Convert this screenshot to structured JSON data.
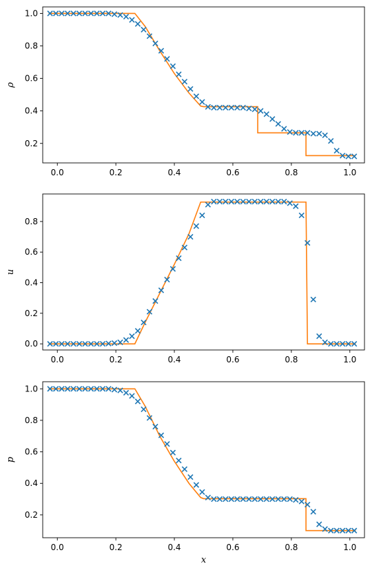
{
  "figure": {
    "background": "#ffffff",
    "series_styles": {
      "numerical": {
        "color": "#1f77b4",
        "marker": "x"
      },
      "exact": {
        "color": "#ff7f0e",
        "line": "solid"
      }
    }
  },
  "chart_data": [
    {
      "type": "line",
      "xlabel": "",
      "ylabel": "ρ",
      "xlim": [
        -0.05,
        1.05
      ],
      "ylim": [
        0.08,
        1.04
      ],
      "xticks": [
        0.0,
        0.2,
        0.4,
        0.6,
        0.8,
        1.0
      ],
      "xtick_labels": [
        "0.0",
        "0.2",
        "0.4",
        "0.6",
        "0.8",
        "1.0"
      ],
      "yticks": [
        0.2,
        0.4,
        0.6,
        0.8,
        1.0
      ],
      "ytick_labels": [
        "0.2",
        "0.4",
        "0.6",
        "0.8",
        "1.0"
      ],
      "grid": false,
      "series": [
        {
          "style": "numerical",
          "x": [
            -0.025,
            -0.005,
            0.015,
            0.035,
            0.055,
            0.075,
            0.095,
            0.115,
            0.135,
            0.155,
            0.175,
            0.195,
            0.215,
            0.235,
            0.255,
            0.275,
            0.295,
            0.315,
            0.335,
            0.355,
            0.375,
            0.395,
            0.415,
            0.435,
            0.455,
            0.475,
            0.495,
            0.515,
            0.535,
            0.555,
            0.575,
            0.595,
            0.615,
            0.635,
            0.655,
            0.675,
            0.695,
            0.715,
            0.735,
            0.755,
            0.775,
            0.795,
            0.815,
            0.835,
            0.855,
            0.875,
            0.895,
            0.915,
            0.935,
            0.955,
            0.975,
            0.995,
            1.015
          ],
          "y": [
            1.0,
            1.0,
            1.0,
            1.0,
            1.0,
            1.0,
            1.0,
            1.0,
            1.0,
            1.0,
            1.0,
            0.995,
            0.99,
            0.98,
            0.96,
            0.935,
            0.9,
            0.86,
            0.815,
            0.77,
            0.72,
            0.675,
            0.625,
            0.58,
            0.535,
            0.49,
            0.455,
            0.425,
            0.42,
            0.42,
            0.42,
            0.42,
            0.42,
            0.42,
            0.415,
            0.41,
            0.4,
            0.38,
            0.35,
            0.32,
            0.29,
            0.27,
            0.265,
            0.265,
            0.265,
            0.26,
            0.26,
            0.25,
            0.215,
            0.155,
            0.125,
            0.12,
            0.12
          ]
        },
        {
          "style": "exact",
          "x": [
            -0.03,
            0.265,
            0.3,
            0.35,
            0.4,
            0.45,
            0.49,
            0.5,
            0.685,
            0.685,
            0.85,
            0.85,
            1.02
          ],
          "y": [
            1.0,
            1.0,
            0.92,
            0.77,
            0.63,
            0.51,
            0.43,
            0.426,
            0.426,
            0.265,
            0.265,
            0.125,
            0.125
          ]
        }
      ]
    },
    {
      "type": "line",
      "xlabel": "",
      "ylabel": "u",
      "xlim": [
        -0.05,
        1.05
      ],
      "ylim": [
        -0.04,
        0.98
      ],
      "xticks": [
        0.0,
        0.2,
        0.4,
        0.6,
        0.8,
        1.0
      ],
      "xtick_labels": [
        "0.0",
        "0.2",
        "0.4",
        "0.6",
        "0.8",
        "1.0"
      ],
      "yticks": [
        0.0,
        0.2,
        0.4,
        0.6,
        0.8
      ],
      "ytick_labels": [
        "0.0",
        "0.2",
        "0.4",
        "0.6",
        "0.8"
      ],
      "grid": false,
      "series": [
        {
          "style": "numerical",
          "x": [
            -0.025,
            -0.005,
            0.015,
            0.035,
            0.055,
            0.075,
            0.095,
            0.115,
            0.135,
            0.155,
            0.175,
            0.195,
            0.215,
            0.235,
            0.255,
            0.275,
            0.295,
            0.315,
            0.335,
            0.355,
            0.375,
            0.395,
            0.415,
            0.435,
            0.455,
            0.475,
            0.495,
            0.515,
            0.535,
            0.555,
            0.575,
            0.595,
            0.615,
            0.635,
            0.655,
            0.675,
            0.695,
            0.715,
            0.735,
            0.755,
            0.775,
            0.795,
            0.815,
            0.835,
            0.855,
            0.875,
            0.895,
            0.915,
            0.935,
            0.955,
            0.975,
            0.995,
            1.015
          ],
          "y": [
            0.0,
            0.0,
            0.0,
            0.0,
            0.0,
            0.0,
            0.0,
            0.0,
            0.0,
            0.0,
            0.002,
            0.005,
            0.01,
            0.025,
            0.05,
            0.085,
            0.14,
            0.21,
            0.28,
            0.35,
            0.42,
            0.49,
            0.56,
            0.63,
            0.7,
            0.77,
            0.84,
            0.91,
            0.93,
            0.93,
            0.93,
            0.93,
            0.93,
            0.93,
            0.93,
            0.93,
            0.93,
            0.93,
            0.93,
            0.93,
            0.93,
            0.92,
            0.9,
            0.84,
            0.66,
            0.29,
            0.05,
            0.01,
            0.0,
            0.0,
            0.0,
            0.0,
            0.0
          ]
        },
        {
          "style": "exact",
          "x": [
            -0.03,
            0.265,
            0.3,
            0.35,
            0.4,
            0.45,
            0.49,
            0.85,
            0.855,
            1.02
          ],
          "y": [
            0.0,
            0.0,
            0.14,
            0.33,
            0.52,
            0.72,
            0.927,
            0.927,
            0.0,
            0.0
          ]
        }
      ]
    },
    {
      "type": "line",
      "xlabel": "x",
      "ylabel": "p",
      "xlim": [
        -0.05,
        1.05
      ],
      "ylim": [
        0.055,
        1.045
      ],
      "xticks": [
        0.0,
        0.2,
        0.4,
        0.6,
        0.8,
        1.0
      ],
      "xtick_labels": [
        "0.0",
        "0.2",
        "0.4",
        "0.6",
        "0.8",
        "1.0"
      ],
      "yticks": [
        0.2,
        0.4,
        0.6,
        0.8,
        1.0
      ],
      "ytick_labels": [
        "0.2",
        "0.4",
        "0.6",
        "0.8",
        "1.0"
      ],
      "grid": false,
      "series": [
        {
          "style": "numerical",
          "x": [
            -0.025,
            -0.005,
            0.015,
            0.035,
            0.055,
            0.075,
            0.095,
            0.115,
            0.135,
            0.155,
            0.175,
            0.195,
            0.215,
            0.235,
            0.255,
            0.275,
            0.295,
            0.315,
            0.335,
            0.355,
            0.375,
            0.395,
            0.415,
            0.435,
            0.455,
            0.475,
            0.495,
            0.515,
            0.535,
            0.555,
            0.575,
            0.595,
            0.615,
            0.635,
            0.655,
            0.675,
            0.695,
            0.715,
            0.735,
            0.755,
            0.775,
            0.795,
            0.815,
            0.835,
            0.855,
            0.875,
            0.895,
            0.915,
            0.935,
            0.955,
            0.975,
            0.995,
            1.015
          ],
          "y": [
            1.0,
            1.0,
            1.0,
            1.0,
            1.0,
            1.0,
            1.0,
            1.0,
            1.0,
            1.0,
            1.0,
            0.995,
            0.99,
            0.975,
            0.955,
            0.92,
            0.87,
            0.815,
            0.76,
            0.705,
            0.65,
            0.595,
            0.545,
            0.49,
            0.44,
            0.39,
            0.345,
            0.31,
            0.3,
            0.3,
            0.3,
            0.3,
            0.3,
            0.3,
            0.3,
            0.3,
            0.3,
            0.3,
            0.3,
            0.3,
            0.3,
            0.3,
            0.295,
            0.285,
            0.265,
            0.22,
            0.14,
            0.11,
            0.1,
            0.1,
            0.1,
            0.1,
            0.1
          ]
        },
        {
          "style": "exact",
          "x": [
            -0.03,
            0.265,
            0.3,
            0.35,
            0.4,
            0.45,
            0.49,
            0.5,
            0.85,
            0.85,
            1.02
          ],
          "y": [
            1.0,
            1.0,
            0.89,
            0.7,
            0.54,
            0.4,
            0.31,
            0.303,
            0.303,
            0.1,
            0.1
          ]
        }
      ]
    }
  ]
}
